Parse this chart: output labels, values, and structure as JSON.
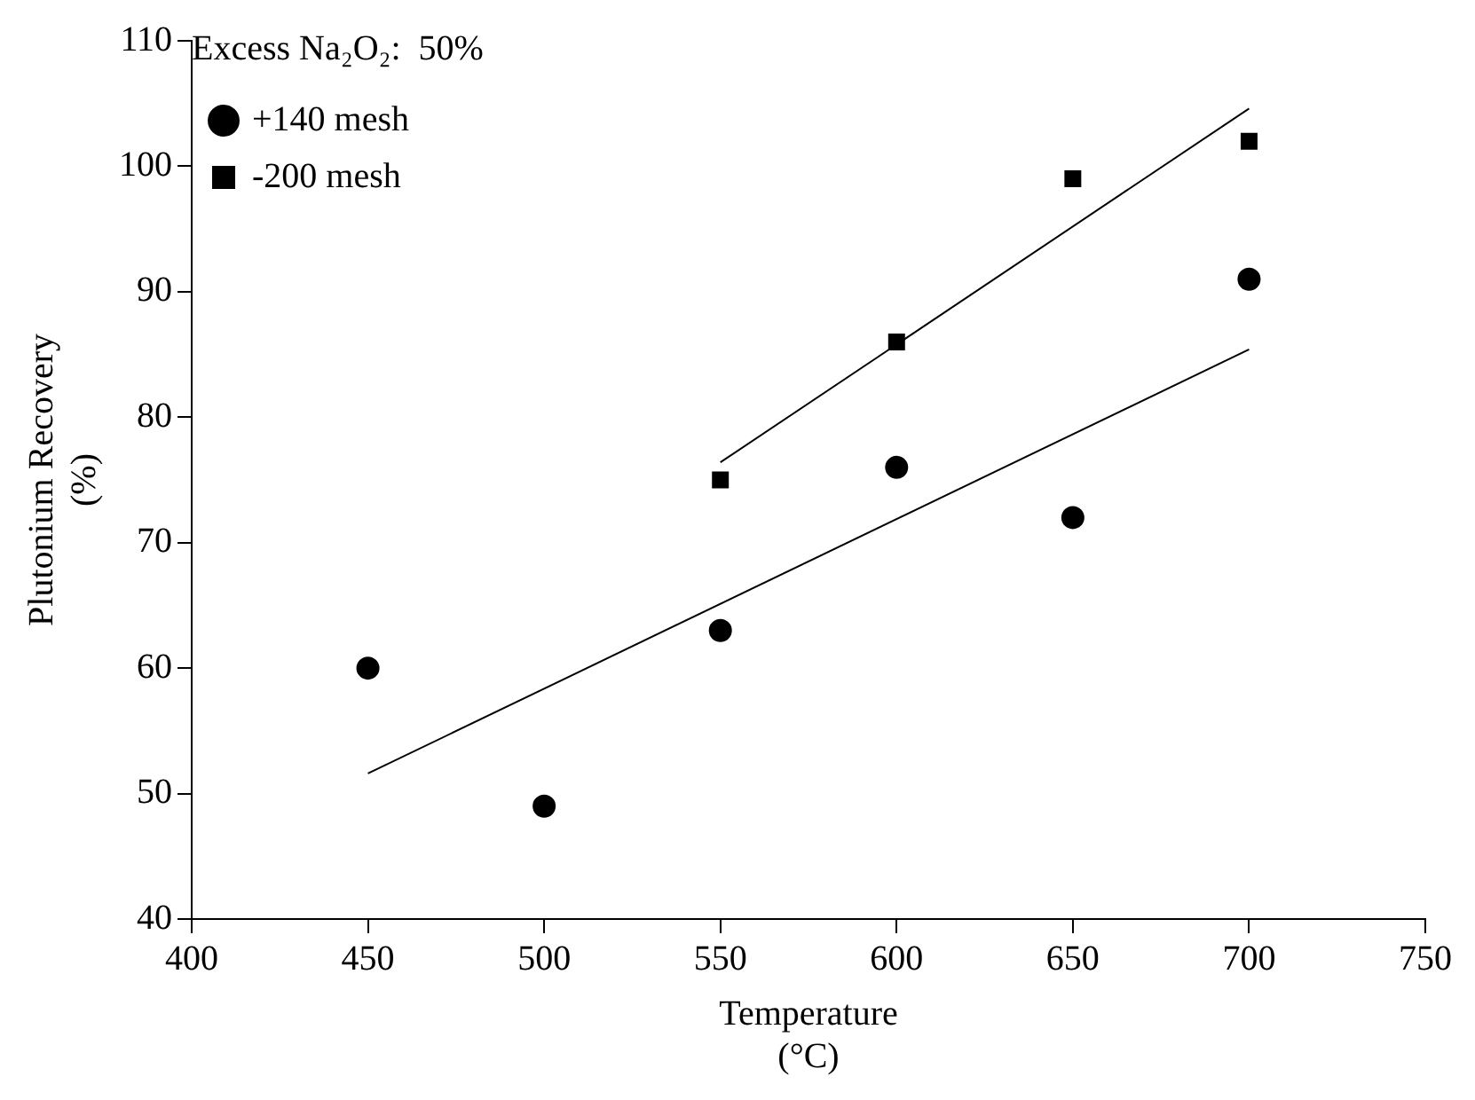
{
  "chart_data": {
    "type": "scatter",
    "xlabel": "Temperature\n(°C)",
    "ylabel": "Plutonium Recovery\n(%)",
    "legend_title": "Excess Na₂O₂:  50%",
    "legend": "top left",
    "grid": false,
    "xlim": [
      400,
      750
    ],
    "xticks": [
      400,
      450,
      500,
      550,
      600,
      650,
      700,
      750
    ],
    "ylim": [
      40,
      110
    ],
    "yticks": [
      40,
      50,
      60,
      70,
      80,
      90,
      100,
      110
    ],
    "series": [
      {
        "name": "+140 mesh",
        "color": "#000000",
        "marker": "circle",
        "x": [
          450,
          500,
          550,
          600,
          650,
          700
        ],
        "values": [
          60,
          49,
          63,
          76,
          72,
          91
        ]
      },
      {
        "name": "-200 mesh",
        "color": "#000000",
        "marker": "square",
        "x": [
          550,
          600,
          650,
          700
        ],
        "values": [
          75,
          86,
          99,
          102
        ]
      },
      {
        "type": "line",
        "color": "#000000",
        "marker": "none",
        "x": [
          450,
          700
        ],
        "values": [
          51.6,
          85.4
        ]
      },
      {
        "type": "line",
        "color": "#000000",
        "marker": "none",
        "x": [
          550,
          700
        ],
        "values": [
          76.4,
          104.6
        ]
      }
    ]
  }
}
